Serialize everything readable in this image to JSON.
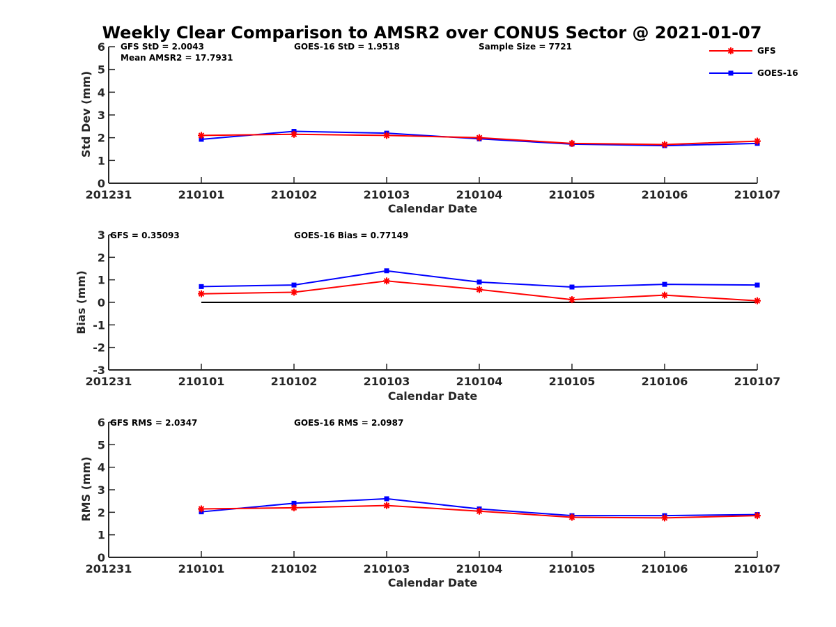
{
  "title": "Weekly Clear Comparison to AMSR2 over CONUS Sector @ 2021-01-07",
  "legend": [
    {
      "name": "GFS",
      "color": "#ff0000",
      "marker": "asterisk"
    },
    {
      "name": "GOES-16",
      "color": "#0000ff",
      "marker": "square"
    }
  ],
  "legend_position": "top-right",
  "chart_data": [
    {
      "type": "line",
      "xlabel": "Calendar Date",
      "ylabel": "Std Dev (mm)",
      "xticks": [
        "201231",
        "210101",
        "210102",
        "210103",
        "210104",
        "210105",
        "210106",
        "210107"
      ],
      "xlim": [
        "201231",
        "210107"
      ],
      "ylim": [
        0,
        6
      ],
      "yticks": [
        "0",
        "1",
        "2",
        "3",
        "4",
        "5",
        "6"
      ],
      "grid": false,
      "x": [
        "210101",
        "210102",
        "210103",
        "210104",
        "210105",
        "210106",
        "210107"
      ],
      "series": [
        {
          "name": "GFS",
          "values": [
            2.1,
            2.15,
            2.1,
            2.0,
            1.75,
            1.7,
            1.85
          ]
        },
        {
          "name": "GOES-16",
          "values": [
            1.93,
            2.28,
            2.2,
            1.95,
            1.72,
            1.65,
            1.75
          ]
        }
      ],
      "annotations": [
        "GFS StD = 2.0043",
        "GOES-16 StD = 1.9518",
        "Sample Size = 7721",
        "Mean AMSR2 = 17.7931"
      ]
    },
    {
      "type": "line",
      "xlabel": "Calendar Date",
      "ylabel": "Bias (mm)",
      "xticks": [
        "201231",
        "210101",
        "210102",
        "210103",
        "210104",
        "210105",
        "210106",
        "210107"
      ],
      "xlim": [
        "201231",
        "210107"
      ],
      "ylim": [
        -3,
        3
      ],
      "yticks": [
        "-3",
        "-2",
        "-1",
        "0",
        "1",
        "2",
        "3"
      ],
      "grid": false,
      "zero_line": {
        "from": "210101",
        "to": "210107",
        "value": 0
      },
      "x": [
        "210101",
        "210102",
        "210103",
        "210104",
        "210105",
        "210106",
        "210107"
      ],
      "series": [
        {
          "name": "GFS",
          "values": [
            0.38,
            0.45,
            0.95,
            0.57,
            0.12,
            0.32,
            0.07
          ]
        },
        {
          "name": "GOES-16",
          "values": [
            0.7,
            0.77,
            1.4,
            0.9,
            0.68,
            0.8,
            0.77
          ]
        }
      ],
      "annotations": [
        "GFS = 0.35093",
        "GOES-16 Bias  = 0.77149"
      ]
    },
    {
      "type": "line",
      "xlabel": "Calendar Date",
      "ylabel": "RMS (mm)",
      "xticks": [
        "201231",
        "210101",
        "210102",
        "210103",
        "210104",
        "210105",
        "210106",
        "210107"
      ],
      "xlim": [
        "201231",
        "210107"
      ],
      "ylim": [
        0,
        6
      ],
      "yticks": [
        "0",
        "1",
        "2",
        "3",
        "4",
        "5",
        "6"
      ],
      "grid": false,
      "x": [
        "210101",
        "210102",
        "210103",
        "210104",
        "210105",
        "210106",
        "210107"
      ],
      "series": [
        {
          "name": "GFS",
          "values": [
            2.15,
            2.2,
            2.3,
            2.05,
            1.78,
            1.75,
            1.85
          ]
        },
        {
          "name": "GOES-16",
          "values": [
            2.02,
            2.4,
            2.6,
            2.15,
            1.85,
            1.85,
            1.9
          ]
        }
      ],
      "annotations": [
        "GFS RMS = 2.0347",
        "GOES-16 RMS = 2.0987"
      ]
    }
  ]
}
